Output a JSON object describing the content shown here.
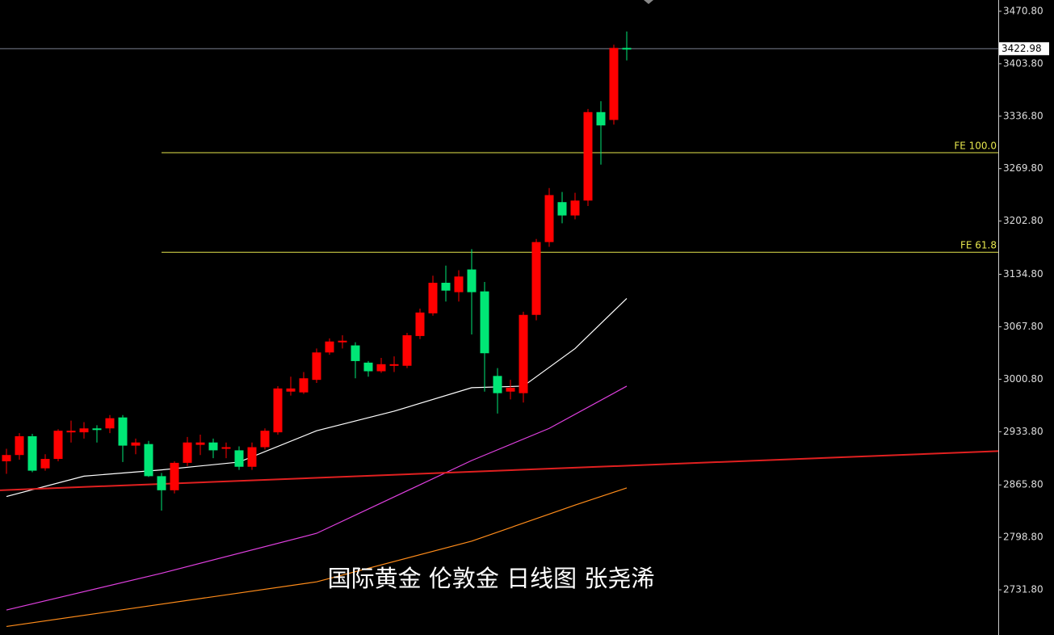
{
  "chart_data": {
    "type": "candlestick",
    "caption": "国际黄金 伦敦金 日线图 张尧浠",
    "up_color": "#ff0000",
    "down_color": "#00e676",
    "ylim": [
      2674.1,
      3485.2
    ],
    "yticks": [
      {
        "value": 3470.8,
        "label": "3470.80"
      },
      {
        "value": 3403.8,
        "label": "3403.80"
      },
      {
        "value": 3336.8,
        "label": "3336.80"
      },
      {
        "value": 3269.8,
        "label": "3269.80"
      },
      {
        "value": 3202.8,
        "label": "3202.80"
      },
      {
        "value": 3134.8,
        "label": "3134.80"
      },
      {
        "value": 3067.8,
        "label": "3067.80"
      },
      {
        "value": 3000.8,
        "label": "3000.80"
      },
      {
        "value": 2933.8,
        "label": "2933.80"
      },
      {
        "value": 2865.8,
        "label": "2865.80"
      },
      {
        "value": 2798.8,
        "label": "2798.80"
      },
      {
        "value": 2731.8,
        "label": "2731.80"
      }
    ],
    "open": [
      2896,
      2904,
      2928,
      2887,
      2899,
      2933,
      2933,
      2938,
      2938,
      2952,
      2916,
      2918,
      2877,
      2859,
      2894,
      2917,
      2920,
      2912,
      2910,
      2889,
      2914,
      2933,
      2985,
      2984,
      3000,
      3035,
      3048,
      3044,
      3022,
      3011,
      3018,
      3018,
      3056,
      3085,
      3124,
      3112,
      3141,
      3113,
      3005,
      2985,
      2983,
      3083,
      3176,
      3227,
      3210,
      3229,
      3342,
      3332,
      3424
    ],
    "high": [
      2912,
      2932,
      2931,
      2905,
      2937,
      2948,
      2946,
      2942,
      2955,
      2955,
      2925,
      2922,
      2881,
      2896,
      2927,
      2930,
      2925,
      2920,
      2915,
      2920,
      2938,
      2992,
      3004,
      3010,
      3040,
      3053,
      3057,
      3048,
      3024,
      3028,
      3030,
      3060,
      3091,
      3133,
      3146,
      3140,
      3167,
      3125,
      3015,
      3000,
      3087,
      3180,
      3245,
      3240,
      3239,
      3346,
      3356,
      3428,
      3445
    ],
    "low": [
      2880,
      2898,
      2882,
      2884,
      2896,
      2920,
      2925,
      2920,
      2932,
      2895,
      2905,
      2876,
      2833,
      2855,
      2890,
      2904,
      2900,
      2900,
      2885,
      2885,
      2911,
      2930,
      2980,
      2982,
      2996,
      3032,
      3040,
      3002,
      3004,
      3009,
      3010,
      3015,
      3052,
      3082,
      3100,
      3100,
      3058,
      2985,
      2957,
      2975,
      2971,
      3076,
      3170,
      3200,
      3205,
      3222,
      3275,
      3326,
      3408
    ],
    "close": [
      2904,
      2928,
      2884,
      2899,
      2935,
      2935,
      2938,
      2936,
      2951,
      2916,
      2920,
      2877,
      2859,
      2894,
      2920,
      2920,
      2910,
      2914,
      2889,
      2914,
      2935,
      2989,
      2989,
      3002,
      3035,
      3049,
      3050,
      3024,
      3011,
      3020,
      3020,
      3057,
      3086,
      3124,
      3114,
      3132,
      3112,
      3034,
      2983,
      2990,
      3083,
      3176,
      3236,
      3210,
      3229,
      3342,
      3325,
      3424,
      3423
    ],
    "levels": [
      {
        "label": "FE 100.0",
        "value": 3290.2,
        "color": "#e6e64d"
      },
      {
        "label": "FE 61.8",
        "value": 3163,
        "color": "#e6e64d"
      }
    ],
    "last_price": {
      "value": 3422.98,
      "label": "3422.98"
    },
    "trendline": {
      "color": "#e02020",
      "values": [
        2859,
        2909
      ]
    },
    "overlays": [
      {
        "color": "#ffffff",
        "x": [
          0,
          6,
          12,
          18,
          24,
          30,
          36,
          40,
          44,
          48
        ],
        "values": [
          2851,
          2877,
          2885,
          2895,
          2935,
          2960,
          2990,
          2992,
          3040,
          3104
        ]
      },
      {
        "color": "#e040e0",
        "x": [
          0,
          12,
          24,
          36,
          42,
          48
        ],
        "values": [
          2706,
          2753,
          2804,
          2897,
          2938,
          2992
        ]
      },
      {
        "color": "#ff8c1a",
        "x": [
          0,
          24,
          36,
          44,
          48
        ],
        "values": [
          2685,
          2742,
          2794,
          2840,
          2862
        ]
      }
    ]
  }
}
